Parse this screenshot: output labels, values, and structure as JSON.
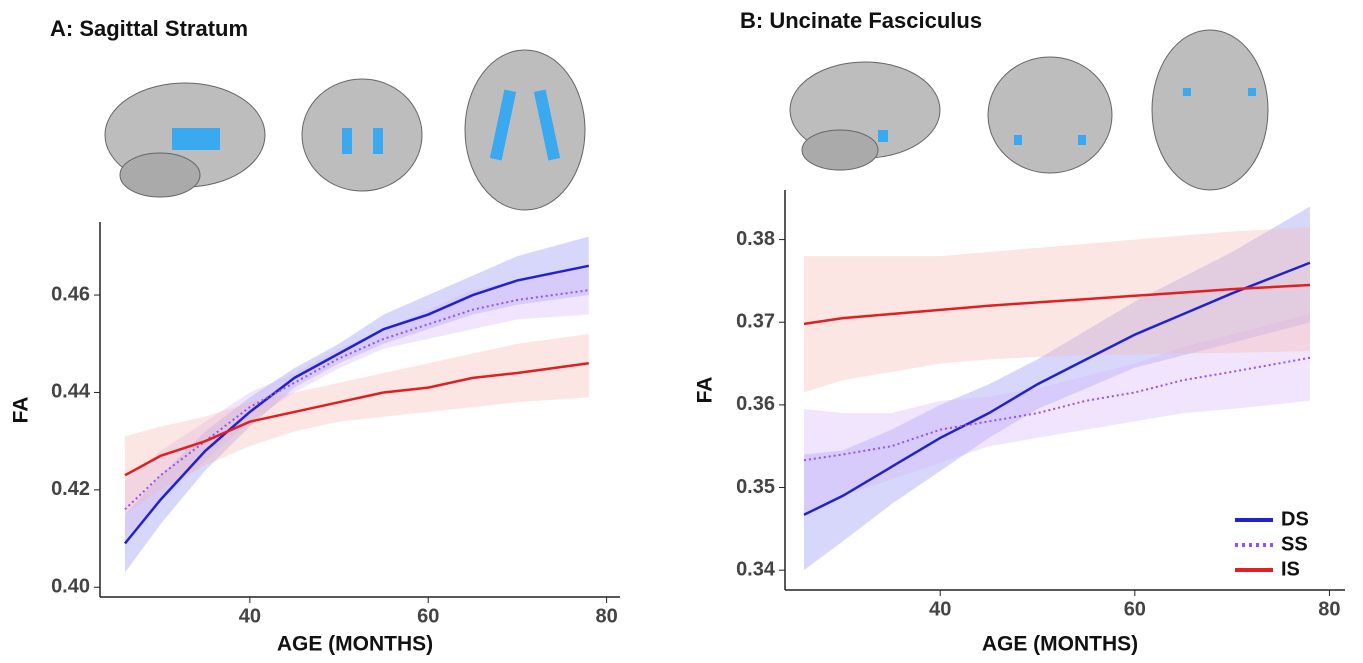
{
  "chart_data": [
    {
      "type": "line",
      "title": "A: Sagittal Stratum",
      "xlabel": "AGE (MONTHS)",
      "ylabel": "FA",
      "x": [
        26,
        30,
        35,
        40,
        45,
        50,
        55,
        60,
        65,
        70,
        78
      ],
      "xlim": [
        23.2,
        81.5
      ],
      "ylim": [
        0.398,
        0.475
      ],
      "xticks": [
        40,
        60,
        80
      ],
      "yticks": [
        {
          "value": 0.4,
          "label": "0.40"
        },
        0.42,
        0.44,
        0.46
      ],
      "series": [
        {
          "color": "#2222cc",
          "band_color": "#8a8cf0",
          "style": "solid",
          "values": [
            0.409,
            0.418,
            0.428,
            0.436,
            0.443,
            0.448,
            0.453,
            0.456,
            0.46,
            0.463,
            0.466
          ],
          "lower": [
            0.403,
            0.413,
            0.424,
            0.433,
            0.441,
            0.446,
            0.45,
            0.453,
            0.456,
            0.458,
            0.46
          ],
          "upper": [
            0.415,
            0.423,
            0.432,
            0.439,
            0.445,
            0.45,
            0.456,
            0.46,
            0.464,
            0.468,
            0.472
          ]
        },
        {
          "color": "#9b4df0",
          "band_color": "#d6b4f8",
          "style": "dotted",
          "values": [
            0.416,
            0.423,
            0.43,
            0.437,
            0.442,
            0.447,
            0.451,
            0.454,
            0.457,
            0.459,
            0.461
          ],
          "lower": [
            0.41,
            0.418,
            0.426,
            0.434,
            0.44,
            0.445,
            0.449,
            0.451,
            0.453,
            0.455,
            0.456
          ],
          "upper": [
            0.422,
            0.428,
            0.434,
            0.44,
            0.444,
            0.449,
            0.453,
            0.457,
            0.461,
            0.463,
            0.466
          ]
        },
        {
          "color": "#e02020",
          "band_color": "#f7b8b0",
          "style": "solid",
          "values": [
            0.423,
            0.427,
            0.43,
            0.434,
            0.436,
            0.438,
            0.44,
            0.441,
            0.443,
            0.444,
            0.446
          ],
          "lower": [
            0.415,
            0.42,
            0.425,
            0.429,
            0.432,
            0.434,
            0.435,
            0.436,
            0.437,
            0.438,
            0.439
          ],
          "upper": [
            0.431,
            0.433,
            0.435,
            0.438,
            0.44,
            0.442,
            0.444,
            0.446,
            0.448,
            0.45,
            0.452
          ]
        }
      ]
    },
    {
      "type": "line",
      "title": "B: Uncinate Fasciculus",
      "xlabel": "AGE (MONTHS)",
      "ylabel": "FA",
      "x": [
        26,
        30,
        35,
        40,
        45,
        50,
        55,
        60,
        65,
        70,
        78
      ],
      "xlim": [
        24.05,
        81.6
      ],
      "ylim": [
        0.3376,
        0.386
      ],
      "xticks": [
        40,
        60,
        80
      ],
      "yticks": [
        0.34,
        0.35,
        0.36,
        0.37,
        0.38
      ],
      "legend": "lower right",
      "series": [
        {
          "name": "DS",
          "color": "#2222cc",
          "band_color": "#8a8cf0",
          "style": "solid",
          "values": [
            0.3467,
            0.349,
            0.3525,
            0.356,
            0.359,
            0.3625,
            0.3655,
            0.3685,
            0.371,
            0.3735,
            0.3772
          ],
          "lower": [
            0.34,
            0.3435,
            0.348,
            0.352,
            0.356,
            0.3595,
            0.362,
            0.3645,
            0.366,
            0.3675,
            0.37
          ],
          "upper": [
            0.354,
            0.3545,
            0.357,
            0.36,
            0.3625,
            0.3655,
            0.369,
            0.3725,
            0.3755,
            0.3785,
            0.384
          ]
        },
        {
          "name": "SS",
          "color": "#9b4df0",
          "band_color": "#d6b4f8",
          "style": "dotted",
          "values": [
            0.3533,
            0.354,
            0.355,
            0.357,
            0.358,
            0.359,
            0.3605,
            0.3615,
            0.363,
            0.364,
            0.3657
          ],
          "lower": [
            0.347,
            0.349,
            0.351,
            0.353,
            0.355,
            0.356,
            0.357,
            0.358,
            0.359,
            0.3595,
            0.3605
          ],
          "upper": [
            0.3595,
            0.359,
            0.359,
            0.3605,
            0.361,
            0.362,
            0.3635,
            0.365,
            0.367,
            0.3685,
            0.371
          ]
        },
        {
          "name": "IS",
          "color": "#e02020",
          "band_color": "#f7b8b0",
          "style": "solid",
          "values": [
            0.3698,
            0.3705,
            0.371,
            0.3715,
            0.372,
            0.3724,
            0.3728,
            0.3732,
            0.3736,
            0.374,
            0.3745
          ],
          "lower": [
            0.3615,
            0.363,
            0.364,
            0.365,
            0.3655,
            0.3658,
            0.366,
            0.3661,
            0.3662,
            0.3663,
            0.3665
          ],
          "upper": [
            0.378,
            0.378,
            0.378,
            0.378,
            0.3785,
            0.379,
            0.3795,
            0.38,
            0.3805,
            0.381,
            0.3815
          ]
        }
      ]
    }
  ]
}
